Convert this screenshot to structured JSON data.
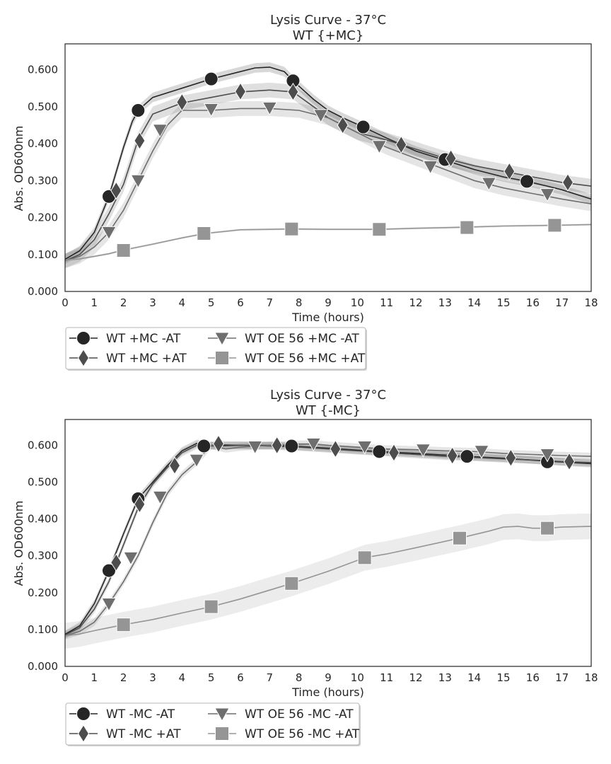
{
  "colors": {
    "s1": "#262626",
    "s2": "#4d4d4d",
    "s3": "#6e6e6e",
    "s4": "#959595"
  },
  "chart_data": [
    {
      "type": "line",
      "title": "Lysis Curve - 37°C",
      "subtitle": "WT {+MC}",
      "xlabel": "Time (hours)",
      "ylabel": "Abs. OD600nm",
      "xlim": [
        0,
        18
      ],
      "ylim": [
        0,
        0.67
      ],
      "xticks": [
        "0",
        "1",
        "2",
        "3",
        "4",
        "5",
        "6",
        "7",
        "8",
        "9",
        "10",
        "11",
        "12",
        "13",
        "14",
        "15",
        "16",
        "17",
        "18"
      ],
      "yticks": [
        "0.000",
        "0.100",
        "0.200",
        "0.300",
        "0.400",
        "0.500",
        "0.600"
      ],
      "ytick_values": [
        0,
        0.1,
        0.2,
        0.3,
        0.4,
        0.5,
        0.6
      ],
      "grid": false,
      "legend_position": "below-left",
      "series": [
        {
          "name": "WT +MC -AT",
          "marker": "circle",
          "color": "#262626",
          "x": [
            0,
            0.5,
            1,
            1.5,
            2,
            2.3,
            2.5,
            3,
            4,
            5,
            6,
            6.5,
            7,
            7.5,
            7.8,
            8.5,
            9,
            9.5,
            10.2,
            11,
            12,
            13,
            14,
            15,
            15.8,
            16.5,
            17,
            18
          ],
          "y": [
            0.087,
            0.11,
            0.16,
            0.257,
            0.39,
            0.46,
            0.49,
            0.525,
            0.55,
            0.575,
            0.595,
            0.605,
            0.607,
            0.595,
            0.57,
            0.52,
            0.49,
            0.47,
            0.445,
            0.415,
            0.38,
            0.355,
            0.33,
            0.31,
            0.298,
            0.285,
            0.275,
            0.25
          ],
          "band": 0.013,
          "marker_x": [
            1.5,
            2.5,
            5,
            7.8,
            10.2,
            13.0,
            15.8
          ],
          "marker_y": [
            0.257,
            0.49,
            0.575,
            0.57,
            0.445,
            0.357,
            0.298
          ]
        },
        {
          "name": "WT +MC +AT",
          "marker": "diamond",
          "color": "#4d4d4d",
          "x": [
            0,
            0.5,
            1,
            1.5,
            2,
            2.5,
            3,
            4,
            5,
            6,
            7,
            7.8,
            8.5,
            9,
            10,
            11,
            12,
            13,
            14,
            15,
            16,
            17,
            18
          ],
          "y": [
            0.083,
            0.1,
            0.14,
            0.21,
            0.29,
            0.41,
            0.48,
            0.51,
            0.525,
            0.54,
            0.545,
            0.54,
            0.5,
            0.47,
            0.43,
            0.41,
            0.385,
            0.36,
            0.34,
            0.325,
            0.31,
            0.295,
            0.285
          ],
          "band": 0.02,
          "marker_x": [
            1.75,
            2.55,
            4.0,
            6.0,
            7.8,
            9.5,
            11.5,
            13.2,
            15.2,
            17.2
          ],
          "marker_y": [
            0.273,
            0.408,
            0.512,
            0.541,
            0.54,
            0.45,
            0.397,
            0.36,
            0.325,
            0.295
          ],
          "marker_visible": true
        },
        {
          "name": "WT OE 56 +MC -AT",
          "marker": "triangle_down",
          "color": "#6e6e6e",
          "x": [
            0,
            0.5,
            1,
            1.5,
            2,
            2.5,
            3,
            3.5,
            4,
            5,
            6,
            7,
            8,
            9,
            10,
            11,
            12,
            13,
            14,
            15,
            16,
            17,
            18
          ],
          "y": [
            0.083,
            0.095,
            0.12,
            0.16,
            0.22,
            0.3,
            0.38,
            0.45,
            0.49,
            0.49,
            0.495,
            0.495,
            0.49,
            0.47,
            0.43,
            0.39,
            0.36,
            0.33,
            0.3,
            0.28,
            0.265,
            0.25,
            0.237
          ],
          "band": 0.02,
          "marker_x": [
            1.5,
            2.5,
            3.25,
            5.0,
            7.0,
            8.75,
            10.75,
            12.5,
            14.5,
            16.5
          ],
          "marker_y": [
            0.16,
            0.3,
            0.437,
            0.493,
            0.497,
            0.477,
            0.393,
            0.338,
            0.293,
            0.263
          ]
        },
        {
          "name": "WT OE 56 +MC +AT",
          "marker": "square",
          "color": "#959595",
          "x": [
            0,
            0.5,
            1,
            1.5,
            2,
            3,
            4,
            4.8,
            6,
            7.75,
            9,
            10.75,
            12,
            13.75,
            15,
            16.75,
            18
          ],
          "y": [
            0.085,
            0.088,
            0.095,
            0.102,
            0.112,
            0.128,
            0.145,
            0.157,
            0.167,
            0.169,
            0.168,
            0.168,
            0.171,
            0.174,
            0.177,
            0.179,
            0.181
          ],
          "band": 0.003,
          "marker_x": [
            2.0,
            4.75,
            7.75,
            10.75,
            13.75,
            16.75
          ],
          "marker_y": [
            0.111,
            0.157,
            0.169,
            0.168,
            0.173,
            0.179
          ]
        }
      ]
    },
    {
      "type": "line",
      "title": "Lysis Curve - 37°C",
      "subtitle": "WT {-MC}",
      "xlabel": "Time (hours)",
      "ylabel": "Abs. OD600nm",
      "xlim": [
        0,
        18
      ],
      "ylim": [
        0,
        0.67
      ],
      "xticks": [
        "0",
        "1",
        "2",
        "3",
        "4",
        "5",
        "6",
        "7",
        "8",
        "9",
        "10",
        "11",
        "12",
        "13",
        "14",
        "15",
        "16",
        "17",
        "18"
      ],
      "yticks": [
        "0.000",
        "0.100",
        "0.200",
        "0.300",
        "0.400",
        "0.500",
        "0.600"
      ],
      "ytick_values": [
        0,
        0.1,
        0.2,
        0.3,
        0.4,
        0.5,
        0.6
      ],
      "grid": false,
      "legend_position": "below-left",
      "series": [
        {
          "name": "WT -MC -AT",
          "marker": "circle",
          "color": "#262626",
          "x": [
            0,
            0.5,
            1,
            1.5,
            2,
            2.5,
            3,
            3.5,
            4,
            4.5,
            5,
            6,
            7,
            7.75,
            9,
            10.75,
            12,
            13.75,
            15,
            16.5,
            18
          ],
          "y": [
            0.087,
            0.11,
            0.17,
            0.26,
            0.36,
            0.455,
            0.5,
            0.545,
            0.585,
            0.605,
            0.598,
            0.6,
            0.6,
            0.598,
            0.592,
            0.583,
            0.578,
            0.57,
            0.565,
            0.557,
            0.55
          ],
          "band": 0.01,
          "marker_x": [
            1.5,
            2.5,
            4.75,
            7.75,
            10.75,
            13.75,
            16.5
          ],
          "marker_y": [
            0.26,
            0.455,
            0.598,
            0.598,
            0.583,
            0.57,
            0.555
          ]
        },
        {
          "name": "WT -MC +AT",
          "marker": "diamond",
          "color": "#4d4d4d",
          "x": [
            0,
            0.5,
            1,
            1.5,
            2,
            2.5,
            3,
            3.5,
            4,
            4.5,
            5,
            5.25,
            6,
            7,
            8,
            9,
            10,
            11,
            12,
            13,
            14,
            15,
            16,
            17,
            18
          ],
          "y": [
            0.085,
            0.105,
            0.155,
            0.23,
            0.33,
            0.43,
            0.495,
            0.54,
            0.58,
            0.6,
            0.6,
            0.602,
            0.6,
            0.598,
            0.595,
            0.59,
            0.585,
            0.58,
            0.575,
            0.57,
            0.567,
            0.563,
            0.56,
            0.556,
            0.553
          ],
          "band": 0.01,
          "marker_x": [
            1.75,
            2.55,
            3.75,
            5.25,
            7.25,
            9.25,
            11.25,
            13.25,
            15.25,
            17.25
          ],
          "marker_y": [
            0.282,
            0.44,
            0.545,
            0.604,
            0.6,
            0.59,
            0.58,
            0.572,
            0.566,
            0.556
          ]
        },
        {
          "name": "WT OE 56 -MC -AT",
          "marker": "triangle_down",
          "color": "#6e6e6e",
          "x": [
            0,
            0.5,
            1,
            1.5,
            2,
            2.5,
            3,
            3.5,
            4,
            4.5,
            5,
            5.5,
            6,
            7,
            8,
            8.5,
            9,
            10,
            11,
            12,
            13,
            14,
            15,
            16,
            17,
            18
          ],
          "y": [
            0.083,
            0.095,
            0.12,
            0.17,
            0.23,
            0.3,
            0.39,
            0.47,
            0.52,
            0.555,
            0.6,
            0.59,
            0.595,
            0.6,
            0.603,
            0.604,
            0.6,
            0.595,
            0.59,
            0.588,
            0.585,
            0.583,
            0.578,
            0.575,
            0.572,
            0.57
          ],
          "band": 0.01,
          "marker_x": [
            1.5,
            2.25,
            3.25,
            4.5,
            6.5,
            8.5,
            10.25,
            12.25,
            14.25,
            16.5
          ],
          "marker_y": [
            0.17,
            0.295,
            0.46,
            0.56,
            0.596,
            0.604,
            0.596,
            0.588,
            0.584,
            0.575
          ]
        },
        {
          "name": "WT OE 56 -MC +AT",
          "marker": "square",
          "color": "#959595",
          "x": [
            0,
            0.5,
            1,
            1.5,
            2,
            3,
            4,
            5,
            6,
            7,
            7.75,
            9,
            10.25,
            11,
            12,
            13.5,
            14.5,
            15,
            15.5,
            16,
            16.5,
            17,
            18
          ],
          "y": [
            0.083,
            0.088,
            0.097,
            0.105,
            0.113,
            0.127,
            0.145,
            0.162,
            0.183,
            0.207,
            0.225,
            0.258,
            0.295,
            0.305,
            0.322,
            0.348,
            0.367,
            0.378,
            0.38,
            0.375,
            0.375,
            0.378,
            0.38
          ],
          "band": 0.035,
          "marker_x": [
            2.0,
            5.0,
            7.75,
            10.25,
            13.5,
            16.5
          ],
          "marker_y": [
            0.113,
            0.162,
            0.225,
            0.295,
            0.348,
            0.375
          ]
        }
      ]
    }
  ]
}
